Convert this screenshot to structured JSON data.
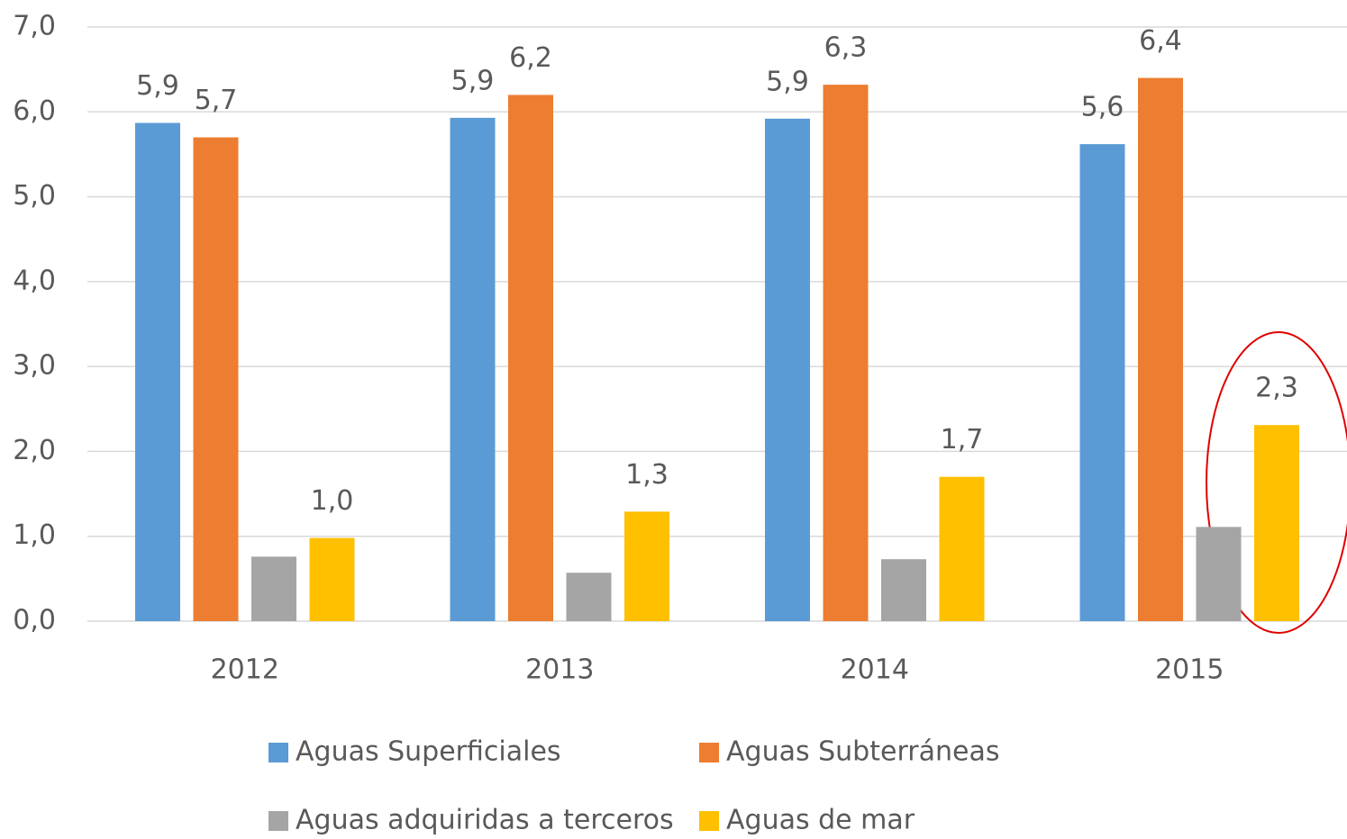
{
  "chart_data": {
    "type": "bar",
    "categories": [
      "2012",
      "2013",
      "2014",
      "2015"
    ],
    "series": [
      {
        "name": "Aguas Superficiales",
        "color": "#5b9bd5",
        "values": [
          5.87,
          5.93,
          5.92,
          5.62
        ],
        "value_labels": [
          "5,9",
          "5,9",
          "5,9",
          "5,6"
        ]
      },
      {
        "name": "Aguas Subterráneas",
        "color": "#ed7d31",
        "values": [
          5.7,
          6.2,
          6.32,
          6.4
        ],
        "value_labels": [
          "5,7",
          "6,2",
          "6,3",
          "6,4"
        ]
      },
      {
        "name": "Aguas adquiridas a terceros",
        "color": "#a5a5a5",
        "values": [
          0.76,
          0.57,
          0.73,
          1.11
        ]
      },
      {
        "name": "Aguas de mar",
        "color": "#ffc000",
        "values": [
          0.98,
          1.29,
          1.7,
          2.31
        ],
        "value_labels": [
          "1,0",
          "1,3",
          "1,7",
          "2,3"
        ]
      }
    ],
    "ylim": [
      0,
      7
    ],
    "yticks": [
      {
        "value": 0,
        "label": "0,0"
      },
      {
        "value": 1,
        "label": "1,0"
      },
      {
        "value": 2,
        "label": "2,0"
      },
      {
        "value": 3,
        "label": "3,0"
      },
      {
        "value": 4,
        "label": "4,0"
      },
      {
        "value": 5,
        "label": "5,0"
      },
      {
        "value": 6,
        "label": "6,0"
      },
      {
        "value": 7,
        "label": "7,0"
      }
    ],
    "grid": true
  }
}
